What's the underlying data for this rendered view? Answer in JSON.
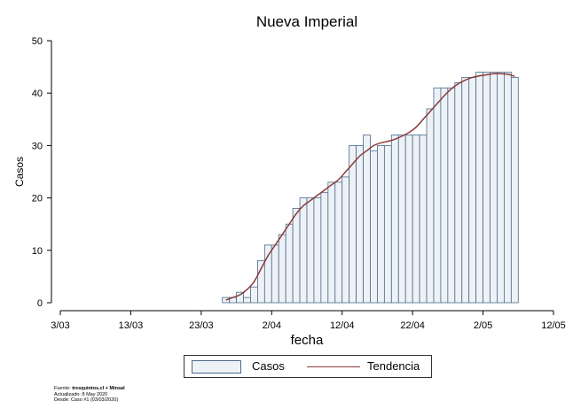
{
  "chart_data": {
    "type": "bar",
    "title": "Nueva Imperial",
    "xlabel": "fecha",
    "ylabel": "Casos",
    "ylim": [
      0,
      50
    ],
    "yticks": [
      0,
      10,
      20,
      30,
      40,
      50
    ],
    "xticks": [
      "3/03",
      "13/03",
      "23/03",
      "2/04",
      "12/04",
      "22/04",
      "2/05",
      "12/05"
    ],
    "x_start": "2020-03-03",
    "x_end": "2020-05-12",
    "bar_start": "2020-03-26",
    "values": [
      1,
      1,
      2,
      1,
      3,
      8,
      11,
      11,
      13,
      15,
      18,
      20,
      20,
      20,
      21,
      23,
      23,
      24,
      30,
      30,
      32,
      29,
      30,
      30,
      32,
      32,
      32,
      32,
      32,
      37,
      41,
      41,
      41,
      42,
      43,
      43,
      44,
      44,
      44,
      44,
      44,
      43
    ],
    "series": [
      {
        "name": "Casos",
        "values": [
          1,
          1,
          2,
          1,
          3,
          8,
          11,
          11,
          13,
          15,
          18,
          20,
          20,
          20,
          21,
          23,
          23,
          24,
          30,
          30,
          32,
          29,
          30,
          30,
          32,
          32,
          32,
          32,
          32,
          37,
          41,
          41,
          41,
          42,
          43,
          43,
          44,
          44,
          44,
          44,
          44,
          43
        ]
      },
      {
        "name": "Tendencia",
        "values": [
          0.5,
          1,
          1.5,
          2.5,
          4,
          6.5,
          9,
          11,
          13,
          15,
          17,
          18.5,
          19.5,
          20.5,
          21.5,
          22.5,
          23.5,
          25,
          26.5,
          28,
          29,
          30,
          30.5,
          30.8,
          31.2,
          31.8,
          32.5,
          33.5,
          35,
          36.5,
          38,
          39.5,
          40.8,
          41.8,
          42.5,
          43,
          43.3,
          43.5,
          43.7,
          43.7,
          43.6,
          43.2
        ]
      }
    ],
    "colors": {
      "bar_fill": "#eef2f6",
      "bar_stroke": "#4a6a8a",
      "trend": "#8b3a3a"
    }
  },
  "legend": {
    "casos_label": "Casos",
    "trend_label": "Tendencia"
  },
  "footer": {
    "fuente_prefix": "Fuente: ",
    "fuente_bold": "tresquintos.cl + Minsal",
    "actualizado": "Actualizado: 8 May 2020",
    "desde": "Desde: Caso #1  (03/03/2020)"
  }
}
